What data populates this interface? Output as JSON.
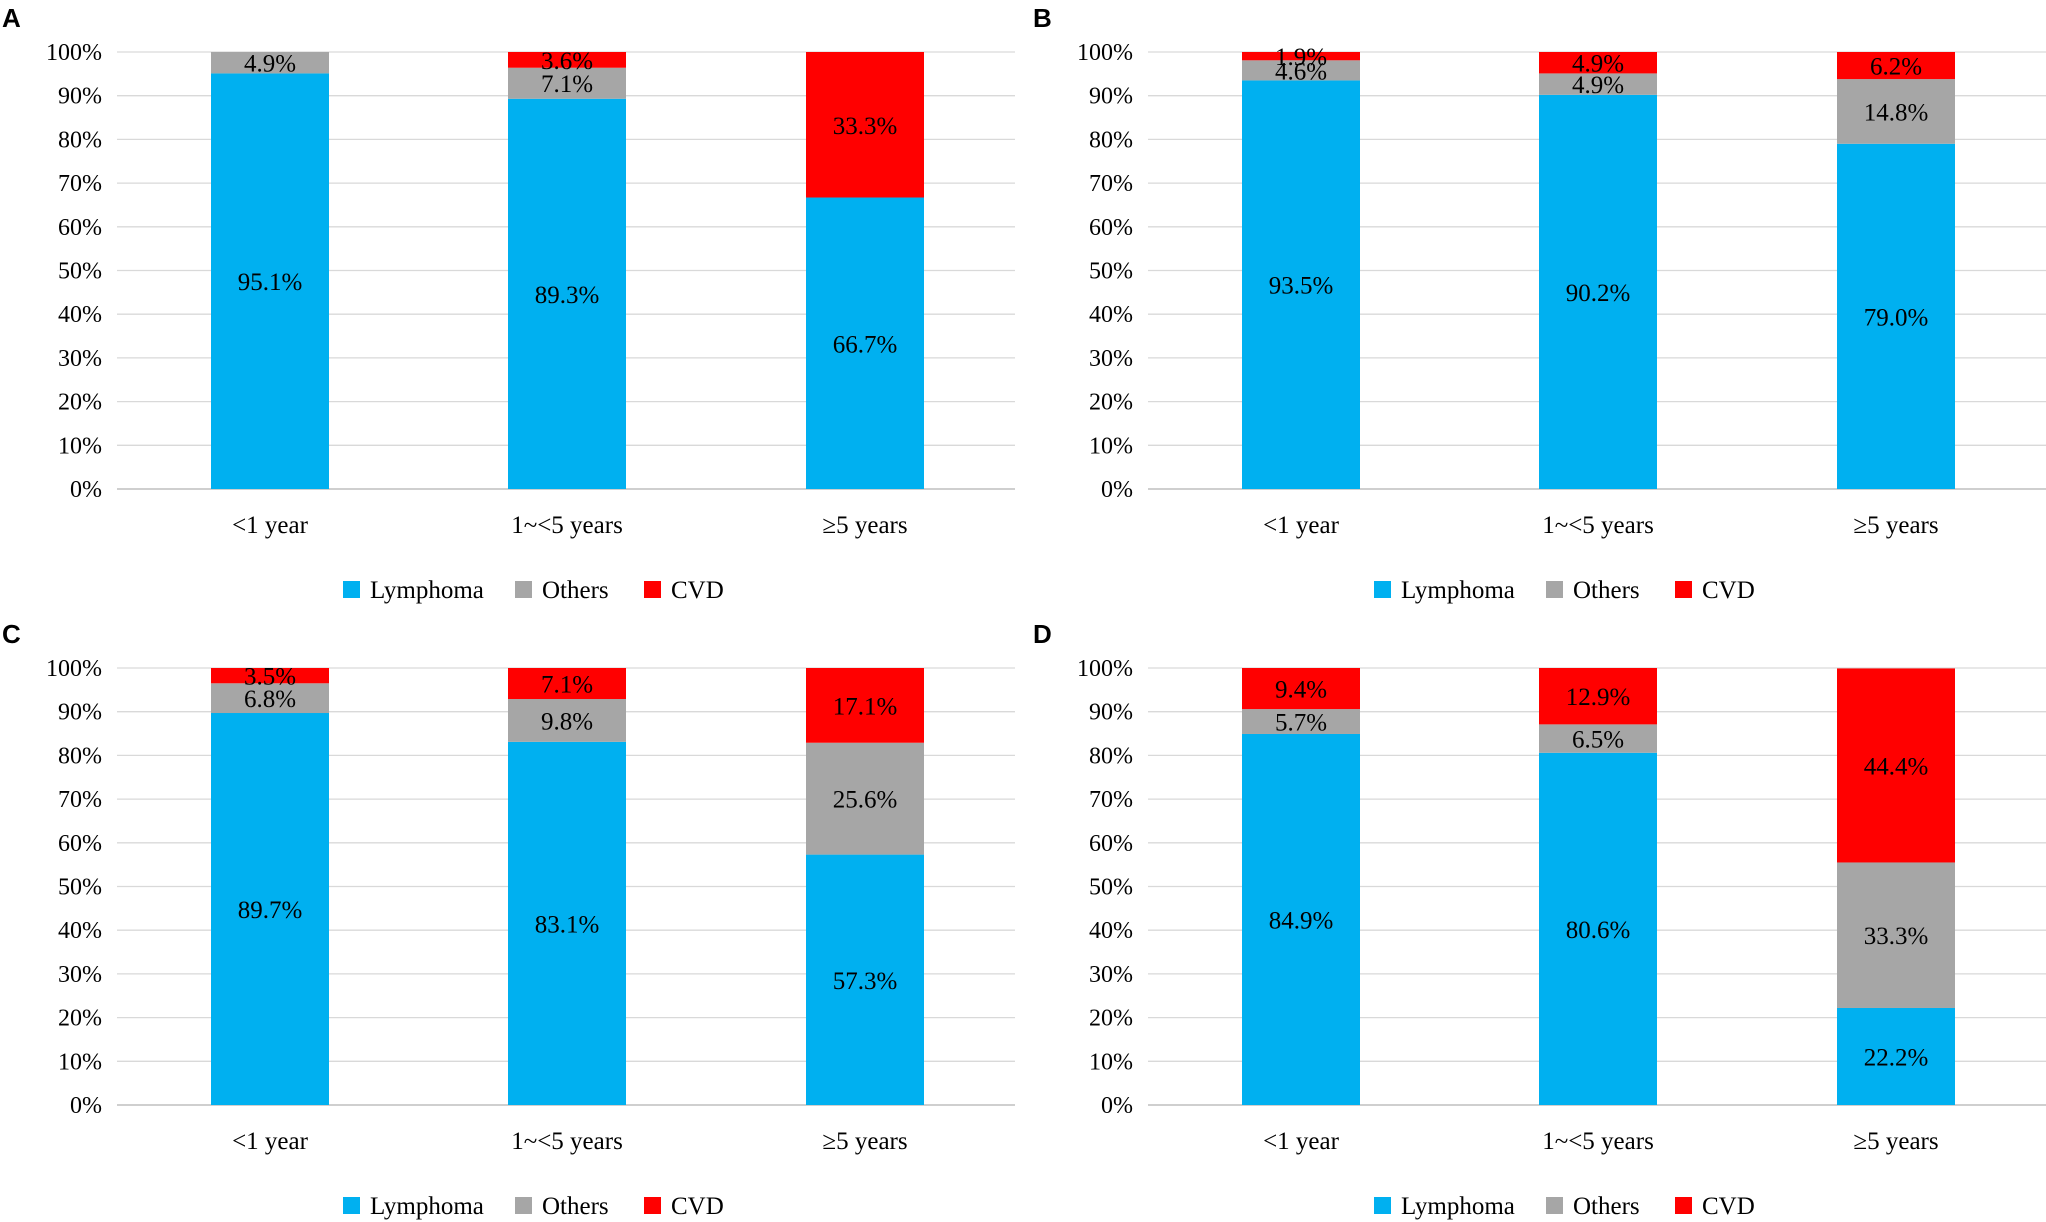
{
  "colors": {
    "Lymphoma": "#00b0f0",
    "Others": "#a6a6a6",
    "CVD": "#ff0000",
    "grid": "#d9d9d9",
    "axis": "#bfbfbf",
    "text": "#000000"
  },
  "legend": [
    "Lymphoma",
    "Others",
    "CVD"
  ],
  "y_ticks": [
    "0%",
    "10%",
    "20%",
    "30%",
    "40%",
    "50%",
    "60%",
    "70%",
    "80%",
    "90%",
    "100%"
  ],
  "chart_data": [
    {
      "panel": "A",
      "type": "bar",
      "stacked": true,
      "categories": [
        "<1 year",
        "1~<5 years",
        "≥5 years"
      ],
      "series": [
        {
          "name": "Lymphoma",
          "values": [
            95.1,
            89.3,
            66.7
          ],
          "labels": [
            "95.1%",
            "89.3%",
            "66.7%"
          ]
        },
        {
          "name": "Others",
          "values": [
            4.9,
            7.1,
            0
          ],
          "labels": [
            "4.9%",
            "7.1%",
            ""
          ]
        },
        {
          "name": "CVD",
          "values": [
            0,
            3.6,
            33.3
          ],
          "labels": [
            "",
            "3.6%",
            "33.3%"
          ]
        }
      ],
      "ylim": [
        0,
        100
      ],
      "legend_position": "bottom"
    },
    {
      "panel": "B",
      "type": "bar",
      "stacked": true,
      "categories": [
        "<1 year",
        "1~<5 years",
        "≥5 years"
      ],
      "series": [
        {
          "name": "Lymphoma",
          "values": [
            93.5,
            90.2,
            79.0
          ],
          "labels": [
            "93.5%",
            "90.2%",
            "79.0%"
          ]
        },
        {
          "name": "Others",
          "values": [
            4.6,
            4.9,
            14.8
          ],
          "labels": [
            "4.6%",
            "4.9%",
            "14.8%"
          ]
        },
        {
          "name": "CVD",
          "values": [
            1.9,
            4.9,
            6.2
          ],
          "labels": [
            "1.9%",
            "4.9%",
            "6.2%"
          ]
        }
      ],
      "ylim": [
        0,
        100
      ],
      "legend_position": "bottom"
    },
    {
      "panel": "C",
      "type": "bar",
      "stacked": true,
      "categories": [
        "<1 year",
        "1~<5 years",
        "≥5 years"
      ],
      "series": [
        {
          "name": "Lymphoma",
          "values": [
            89.7,
            83.1,
            57.3
          ],
          "labels": [
            "89.7%",
            "83.1%",
            "57.3%"
          ]
        },
        {
          "name": "Others",
          "values": [
            6.8,
            9.8,
            25.6
          ],
          "labels": [
            "6.8%",
            "9.8%",
            "25.6%"
          ]
        },
        {
          "name": "CVD",
          "values": [
            3.5,
            7.1,
            17.1
          ],
          "labels": [
            "3.5%",
            "7.1%",
            "17.1%"
          ]
        }
      ],
      "ylim": [
        0,
        100
      ],
      "legend_position": "bottom"
    },
    {
      "panel": "D",
      "type": "bar",
      "stacked": true,
      "categories": [
        "<1 year",
        "1~<5 years",
        "≥5 years"
      ],
      "series": [
        {
          "name": "Lymphoma",
          "values": [
            84.9,
            80.6,
            22.2
          ],
          "labels": [
            "84.9%",
            "80.6%",
            "22.2%"
          ]
        },
        {
          "name": "Others",
          "values": [
            5.7,
            6.5,
            33.3
          ],
          "labels": [
            "5.7%",
            "6.5%",
            "33.3%"
          ]
        },
        {
          "name": "CVD",
          "values": [
            9.4,
            12.9,
            44.4
          ],
          "labels": [
            "9.4%",
            "12.9%",
            "44.4%"
          ]
        }
      ],
      "ylim": [
        0,
        100
      ],
      "legend_position": "bottom"
    }
  ]
}
